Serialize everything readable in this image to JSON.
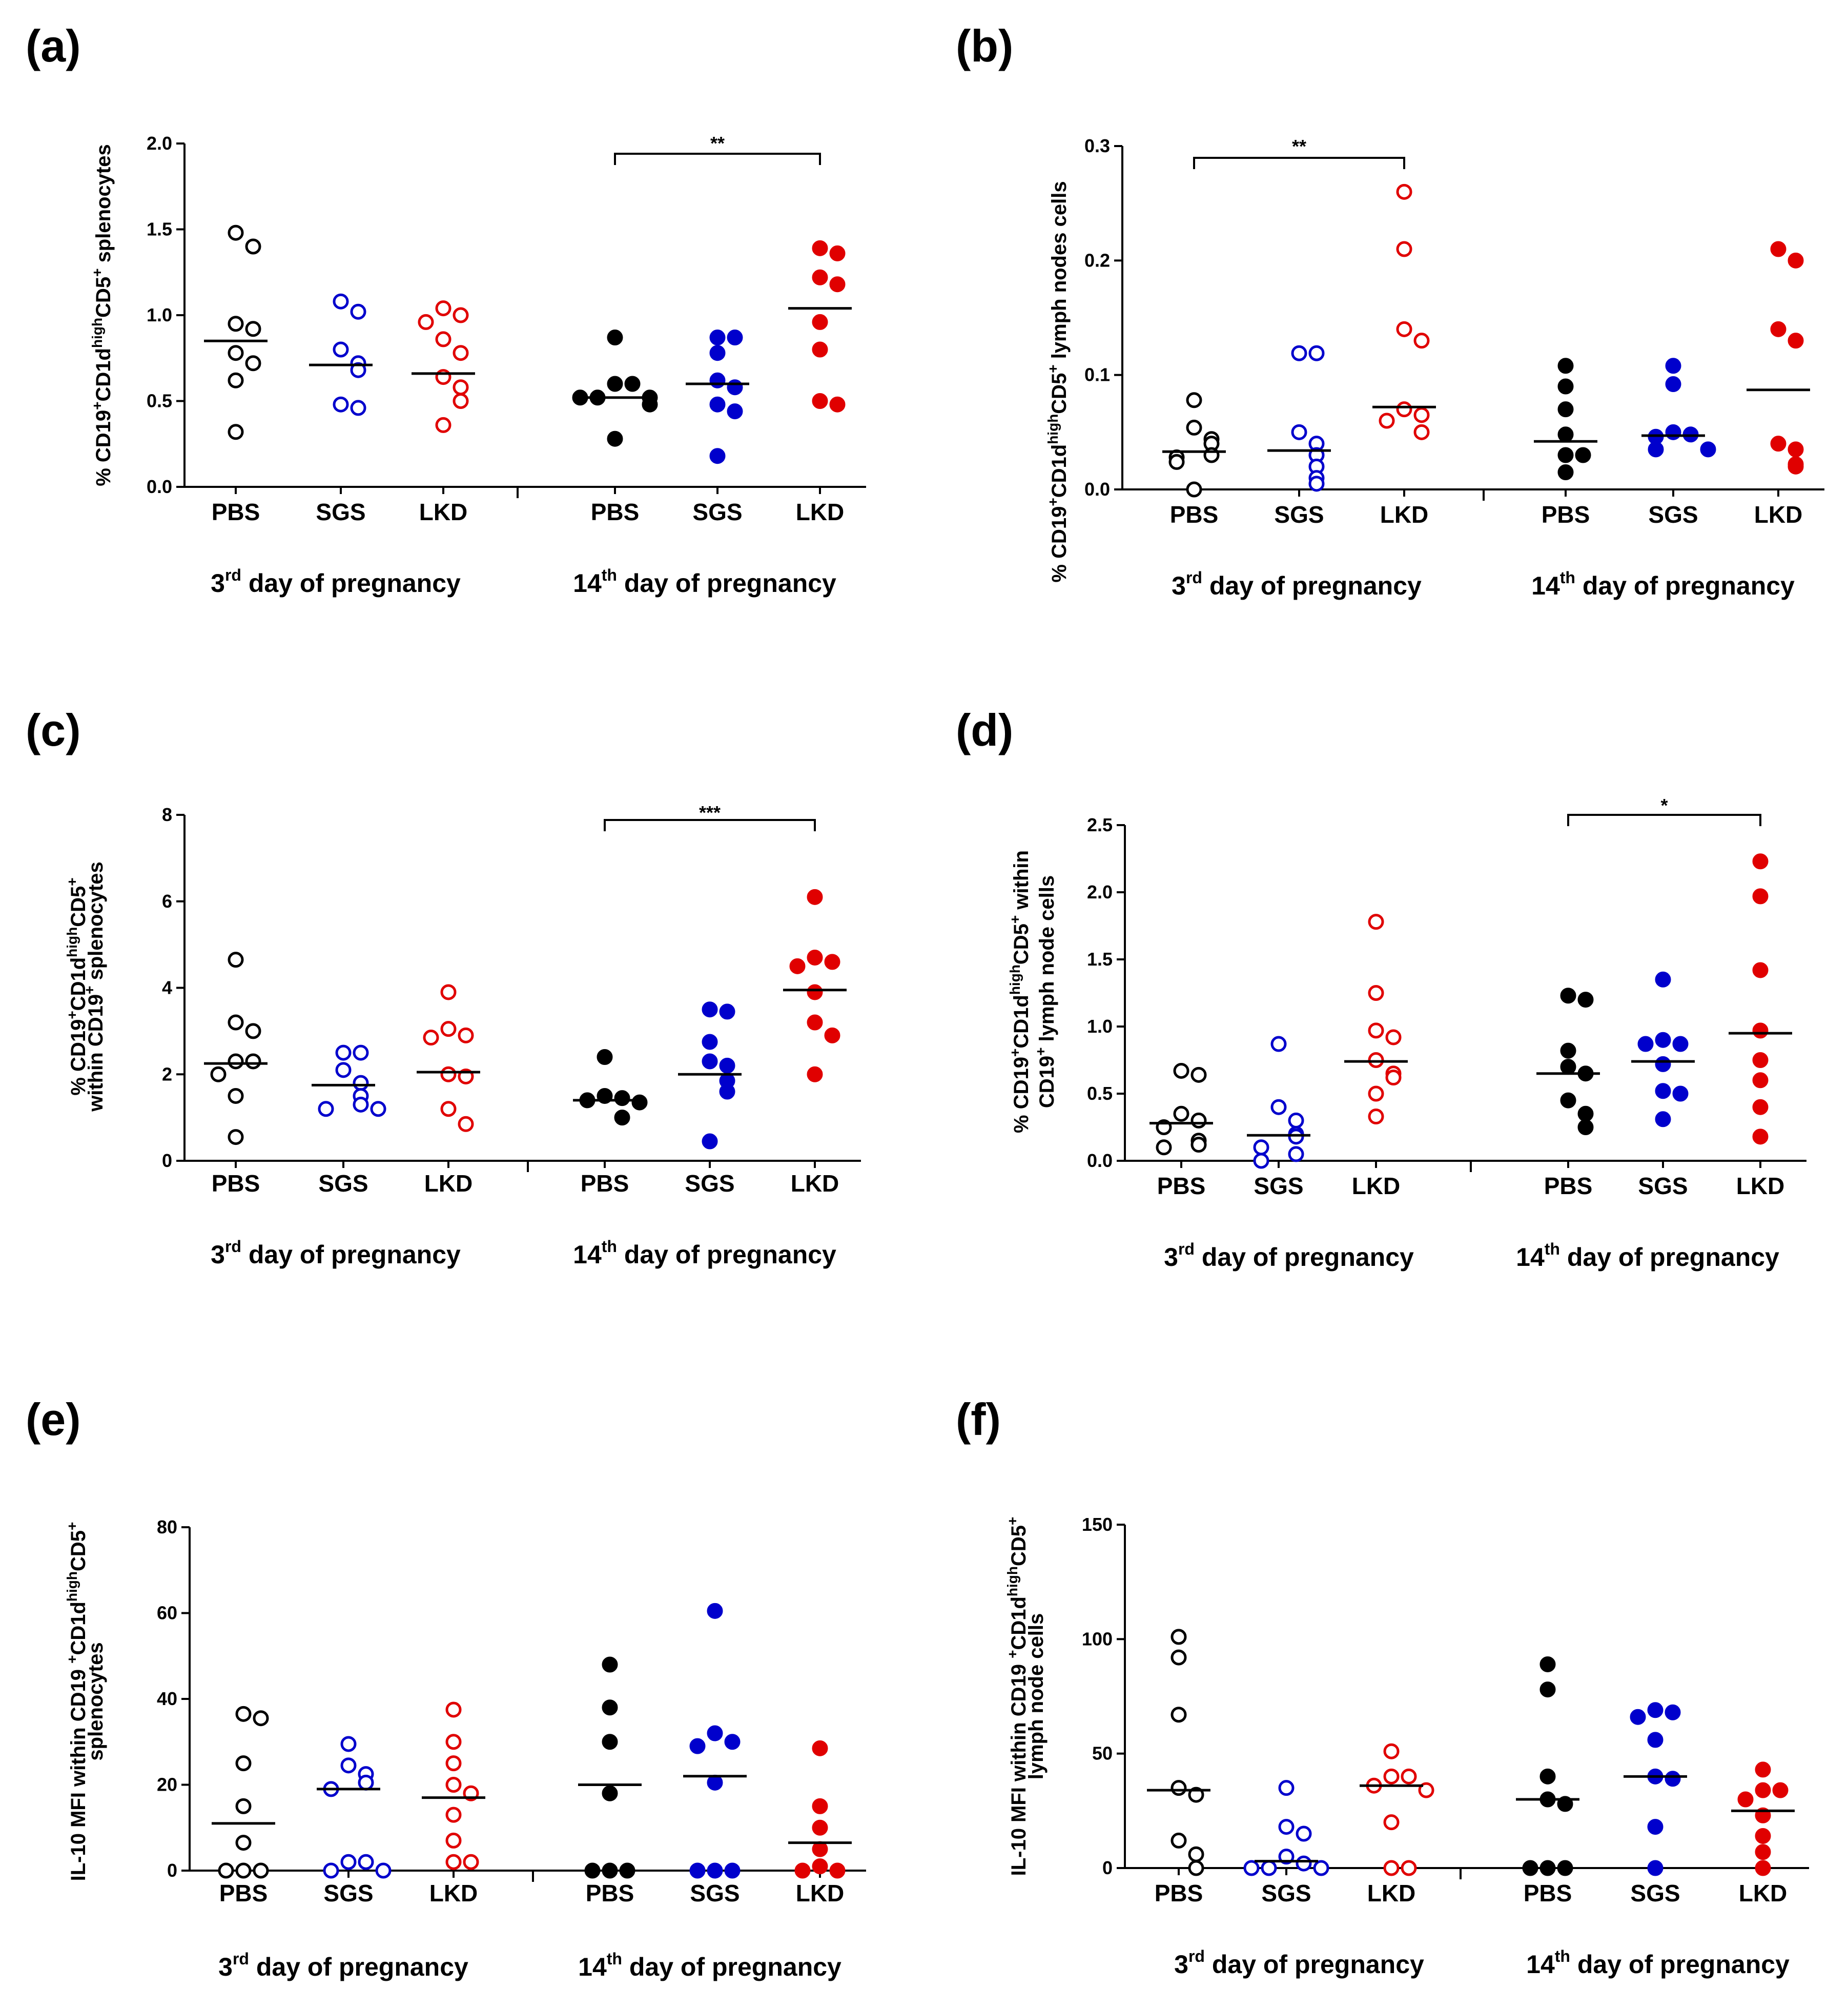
{
  "categories": [
    "PBS",
    "SGS",
    "LKD"
  ],
  "groups": [
    "day of pregnancy",
    "day of pregnancy"
  ],
  "group_ordinals": [
    {
      "num": "3",
      "sup": "rd"
    },
    {
      "num": "14",
      "sup": "th"
    }
  ],
  "colors": [
    "#000000",
    "#0000cc",
    "#e00000"
  ],
  "chart_data": [
    {
      "type": "scatter",
      "label": "(a)",
      "ylabel": {
        "parts": [
          "% CD19",
          "+",
          "CD1d",
          "high",
          "CD5",
          "+",
          " splenocytes"
        ]
      },
      "ylim": [
        0,
        2.0
      ],
      "ticks": [
        "0.0",
        "0.5",
        "1.0",
        "1.5",
        "2.0"
      ],
      "series": [
        {
          "name": "3rd PBS",
          "filled": false,
          "values": [
            1.48,
            1.4,
            0.95,
            0.92,
            0.78,
            0.72,
            0.62,
            0.32
          ],
          "median": 0.85
        },
        {
          "name": "3rd SGS",
          "filled": false,
          "values": [
            1.08,
            1.02,
            0.8,
            0.72,
            0.68,
            0.48,
            0.46
          ],
          "median": 0.71
        },
        {
          "name": "3rd LKD",
          "filled": false,
          "values": [
            1.04,
            1.0,
            0.96,
            0.86,
            0.78,
            0.64,
            0.58,
            0.5,
            0.36
          ],
          "median": 0.66
        },
        {
          "name": "14th PBS",
          "filled": true,
          "values": [
            0.87,
            0.6,
            0.6,
            0.52,
            0.52,
            0.52,
            0.48,
            0.28
          ],
          "median": 0.52
        },
        {
          "name": "14th SGS",
          "filled": true,
          "values": [
            0.87,
            0.87,
            0.78,
            0.62,
            0.58,
            0.48,
            0.44,
            0.18
          ],
          "median": 0.6
        },
        {
          "name": "14th LKD",
          "filled": true,
          "values": [
            1.39,
            1.36,
            1.22,
            1.18,
            0.96,
            0.8,
            0.5,
            0.48
          ],
          "median": 1.04
        }
      ],
      "significance": [
        {
          "from": 3,
          "to": 5,
          "label": "**"
        }
      ]
    },
    {
      "type": "scatter",
      "label": "(b)",
      "ylabel": {
        "parts": [
          "% CD19",
          "+",
          "CD1d",
          "high",
          "CD5",
          "+",
          " lymph nodes cells"
        ]
      },
      "ylim": [
        0,
        0.3
      ],
      "ticks": [
        "0.0",
        "0.1",
        "0.2",
        "0.3"
      ],
      "series": [
        {
          "name": "3rd PBS",
          "filled": false,
          "values": [
            0.078,
            0.054,
            0.044,
            0.04,
            0.03,
            0.028,
            0.024,
            0.0
          ],
          "median": 0.033
        },
        {
          "name": "3rd SGS",
          "filled": false,
          "values": [
            0.119,
            0.119,
            0.05,
            0.04,
            0.03,
            0.02,
            0.01,
            0.005
          ],
          "median": 0.034
        },
        {
          "name": "3rd LKD",
          "filled": false,
          "values": [
            0.26,
            0.21,
            0.14,
            0.13,
            0.07,
            0.065,
            0.06,
            0.05
          ],
          "median": 0.072
        },
        {
          "name": "14th PBS",
          "filled": true,
          "values": [
            0.108,
            0.09,
            0.07,
            0.048,
            0.03,
            0.03,
            0.015
          ],
          "median": 0.042
        },
        {
          "name": "14th SGS",
          "filled": true,
          "values": [
            0.108,
            0.092,
            0.05,
            0.048,
            0.046,
            0.035,
            0.035
          ],
          "median": 0.047
        },
        {
          "name": "14th LKD",
          "filled": true,
          "values": [
            0.21,
            0.2,
            0.14,
            0.13,
            0.04,
            0.035,
            0.022,
            0.02
          ],
          "median": 0.087
        }
      ],
      "significance": [
        {
          "from": 0,
          "to": 2,
          "label": "**"
        }
      ]
    },
    {
      "type": "scatter",
      "label": "(c)",
      "ylabel": {
        "parts": [
          "% CD19",
          "+",
          "CD1d",
          "high",
          "CD5",
          "+"
        ],
        "line2": [
          "within CD19",
          "+",
          " splenocytes"
        ]
      },
      "ylim": [
        0,
        8
      ],
      "ticks": [
        "0",
        "2",
        "4",
        "6",
        "8"
      ],
      "series": [
        {
          "name": "3rd PBS",
          "filled": false,
          "values": [
            4.65,
            3.2,
            3.0,
            2.3,
            2.3,
            2.0,
            1.5,
            0.55
          ],
          "median": 2.25
        },
        {
          "name": "3rd SGS",
          "filled": false,
          "values": [
            2.5,
            2.5,
            2.1,
            1.8,
            1.5,
            1.3,
            1.2,
            1.2
          ],
          "median": 1.75
        },
        {
          "name": "3rd LKD",
          "filled": false,
          "values": [
            3.9,
            3.05,
            2.9,
            2.85,
            2.0,
            1.95,
            1.2,
            0.85
          ],
          "median": 2.05
        },
        {
          "name": "14th PBS",
          "filled": true,
          "values": [
            2.4,
            1.5,
            1.45,
            1.4,
            1.35,
            1.0
          ],
          "median": 1.4
        },
        {
          "name": "14th SGS",
          "filled": true,
          "values": [
            3.5,
            3.45,
            2.75,
            2.3,
            2.2,
            1.85,
            1.6,
            0.45
          ],
          "median": 2.0
        },
        {
          "name": "14th LKD",
          "filled": true,
          "values": [
            6.1,
            4.7,
            4.6,
            4.5,
            3.9,
            3.2,
            2.9,
            2.0
          ],
          "median": 3.95
        }
      ],
      "significance": [
        {
          "from": 3,
          "to": 5,
          "label": "***"
        }
      ]
    },
    {
      "type": "scatter",
      "label": "(d)",
      "ylabel": {
        "parts": [
          "% CD19",
          "+",
          "CD1d",
          "high",
          "CD5",
          "+",
          " within"
        ],
        "line2": [
          "CD19",
          "+",
          " lymph node cells"
        ]
      },
      "ylim": [
        0,
        2.5
      ],
      "ticks": [
        "0.0",
        "0.5",
        "1.0",
        "1.5",
        "2.0",
        "2.5"
      ],
      "series": [
        {
          "name": "3rd PBS",
          "filled": false,
          "values": [
            0.67,
            0.64,
            0.35,
            0.3,
            0.25,
            0.15,
            0.12,
            0.1
          ],
          "median": 0.28
        },
        {
          "name": "3rd SGS",
          "filled": false,
          "values": [
            0.87,
            0.4,
            0.3,
            0.2,
            0.18,
            0.1,
            0.05,
            0.0
          ],
          "median": 0.19
        },
        {
          "name": "3rd LKD",
          "filled": false,
          "values": [
            1.78,
            1.25,
            0.97,
            0.92,
            0.75,
            0.65,
            0.62,
            0.5,
            0.33
          ],
          "median": 0.74
        },
        {
          "name": "14th PBS",
          "filled": true,
          "values": [
            1.23,
            1.2,
            0.82,
            0.7,
            0.65,
            0.45,
            0.35,
            0.25
          ],
          "median": 0.65
        },
        {
          "name": "14th SGS",
          "filled": true,
          "values": [
            1.35,
            0.9,
            0.87,
            0.87,
            0.72,
            0.52,
            0.5,
            0.31
          ],
          "median": 0.74
        },
        {
          "name": "14th LKD",
          "filled": true,
          "values": [
            2.23,
            1.97,
            1.42,
            0.97,
            0.75,
            0.6,
            0.4,
            0.18
          ],
          "median": 0.95
        }
      ],
      "significance": [
        {
          "from": 3,
          "to": 5,
          "label": "*"
        }
      ]
    },
    {
      "type": "scatter",
      "label": "(e)",
      "ylabel": {
        "parts": [
          "IL-10 MFI within CD19 ",
          "+",
          "CD1d",
          "high",
          "CD5",
          "+"
        ],
        "line2": [
          "splenocytes"
        ]
      },
      "ylim": [
        0,
        80
      ],
      "ticks": [
        "0",
        "20",
        "40",
        "60",
        "80"
      ],
      "series": [
        {
          "name": "3rd PBS",
          "filled": false,
          "values": [
            36.5,
            35.5,
            25.0,
            15.0,
            6.5,
            0.0,
            0.0,
            0.0
          ],
          "median": 11.0
        },
        {
          "name": "3rd SGS",
          "filled": false,
          "values": [
            29.5,
            24.5,
            22.5,
            20.5,
            19.0,
            2.0,
            2.0,
            0.0,
            0.0
          ],
          "median": 19.0
        },
        {
          "name": "3rd LKD",
          "filled": false,
          "values": [
            37.5,
            30.0,
            25.0,
            20.0,
            18.0,
            13.0,
            7.0,
            2.0,
            2.0
          ],
          "median": 17.0
        },
        {
          "name": "14th PBS",
          "filled": true,
          "values": [
            48.0,
            38.0,
            30.0,
            18.0,
            0.0,
            0.0,
            0.0
          ],
          "median": 20.0
        },
        {
          "name": "14th SGS",
          "filled": true,
          "values": [
            60.5,
            32.0,
            30.0,
            29.0,
            20.5,
            0.0,
            0.0,
            0.0
          ],
          "median": 22.0
        },
        {
          "name": "14th LKD",
          "filled": true,
          "values": [
            28.5,
            15.0,
            10.0,
            5.0,
            1.0,
            0.0,
            0.0
          ],
          "median": 6.5
        }
      ],
      "significance": []
    },
    {
      "type": "scatter",
      "label": "(f)",
      "ylabel": {
        "parts": [
          "IL-10 MFI within CD19 ",
          "+",
          "CD1d",
          "high",
          "CD5",
          "+"
        ],
        "line2": [
          "lymph node cells"
        ]
      },
      "ylim": [
        0,
        150
      ],
      "ticks": [
        "0",
        "50",
        "100",
        "150"
      ],
      "series": [
        {
          "name": "3rd PBS",
          "filled": false,
          "values": [
            101.0,
            92.0,
            67.0,
            35.0,
            32.0,
            12.0,
            6.0,
            0.0
          ],
          "median": 34.0
        },
        {
          "name": "3rd SGS",
          "filled": false,
          "values": [
            35.0,
            18.0,
            15.0,
            5.0,
            2.0,
            0.0,
            0.0,
            0.0
          ],
          "median": 3.0
        },
        {
          "name": "3rd LKD",
          "filled": false,
          "values": [
            51.0,
            40.0,
            40.0,
            36.0,
            34.0,
            20.0,
            0.0,
            0.0
          ],
          "median": 36.0
        },
        {
          "name": "14th PBS",
          "filled": true,
          "values": [
            89.0,
            78.0,
            40.0,
            30.0,
            28.0,
            0.0,
            0.0,
            0.0
          ],
          "median": 30.0
        },
        {
          "name": "14th SGS",
          "filled": true,
          "values": [
            69.0,
            68.0,
            66.0,
            56.0,
            40.0,
            39.0,
            18.0,
            0.0
          ],
          "median": 40.0
        },
        {
          "name": "14th LKD",
          "filled": true,
          "values": [
            43.0,
            34.0,
            34.0,
            30.0,
            23.0,
            14.0,
            7.0,
            0.0
          ],
          "median": 25.0
        }
      ],
      "significance": []
    }
  ]
}
